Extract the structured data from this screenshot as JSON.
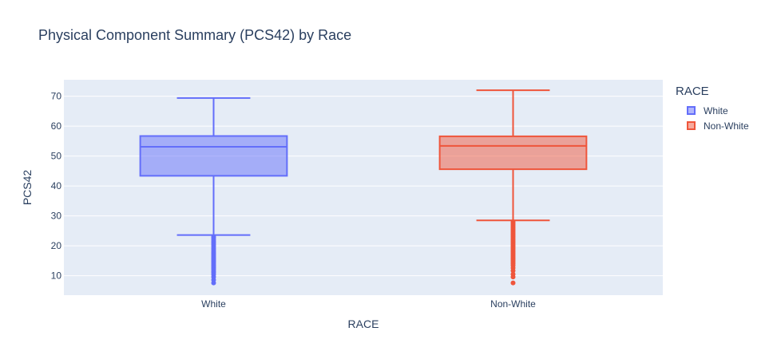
{
  "chart_data": {
    "type": "box",
    "title": "Physical Component Summary (PCS42) by Race",
    "xlabel": "RACE",
    "ylabel": "PCS42",
    "categories": [
      "White",
      "Non-White"
    ],
    "yticks": [
      10,
      20,
      30,
      40,
      50,
      60,
      70
    ],
    "ylim": [
      3.5,
      75.5
    ],
    "grid": true,
    "legend": {
      "title": "RACE",
      "placement": "right"
    },
    "series": [
      {
        "name": "White",
        "color": "#636efa",
        "fill": "rgba(99,110,250,0.5)",
        "min": 23.6,
        "q1": 43.4,
        "median": 53.1,
        "q3": 56.7,
        "max": 69.4,
        "outliers": [
          23.0,
          22.6,
          22.0,
          21.4,
          20.9,
          20.4,
          19.8,
          19.2,
          18.6,
          18.0,
          17.5,
          17.0,
          16.5,
          16.0,
          15.5,
          15.0,
          14.6,
          14.1,
          13.6,
          13.1,
          12.6,
          12.1,
          11.5,
          11.0,
          10.4,
          9.6,
          8.6,
          7.6
        ]
      },
      {
        "name": "Non-White",
        "color": "#ef553b",
        "fill": "rgba(239,85,59,0.5)",
        "min": 28.5,
        "q1": 45.6,
        "median": 53.4,
        "q3": 56.6,
        "max": 72.0,
        "outliers": [
          28.0,
          27.5,
          27.0,
          26.5,
          26.0,
          25.5,
          25.0,
          24.5,
          24.0,
          23.5,
          23.0,
          22.5,
          22.0,
          21.5,
          21.0,
          20.5,
          20.0,
          19.5,
          19.0,
          18.5,
          18.0,
          17.5,
          17.0,
          16.5,
          16.0,
          15.5,
          15.0,
          14.5,
          14.0,
          13.4,
          12.6,
          11.7,
          10.5,
          9.6,
          7.6
        ]
      }
    ]
  }
}
